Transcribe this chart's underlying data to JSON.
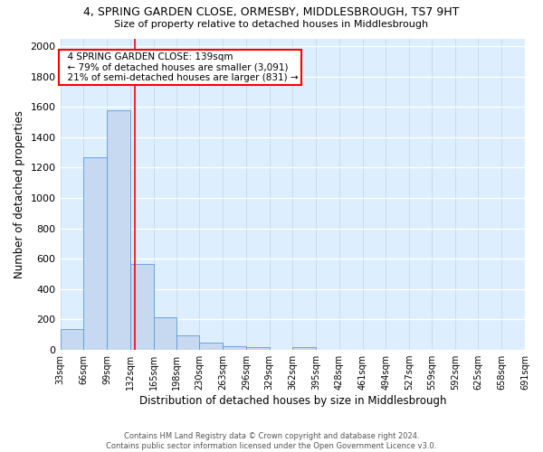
{
  "title1": "4, SPRING GARDEN CLOSE, ORMESBY, MIDDLESBROUGH, TS7 9HT",
  "title2": "Size of property relative to detached houses in Middlesbrough",
  "xlabel": "Distribution of detached houses by size in Middlesbrough",
  "ylabel": "Number of detached properties",
  "bar_color": "#c6d9f0",
  "bar_edge_color": "#5b9bd5",
  "annotation_line_color": "red",
  "property_size": 139,
  "annotation_text": "  4 SPRING GARDEN CLOSE: 139sqm  \n  ← 79% of detached houses are smaller (3,091)\n  21% of semi-detached houses are larger (831) →",
  "bin_edges": [
    33,
    66,
    99,
    132,
    165,
    198,
    230,
    263,
    296,
    329,
    362,
    395,
    428,
    461,
    494,
    527,
    559,
    592,
    625,
    658,
    691
  ],
  "bin_heights": [
    140,
    1270,
    1575,
    565,
    215,
    95,
    48,
    22,
    17,
    3,
    17,
    0,
    0,
    0,
    0,
    0,
    0,
    0,
    0,
    0
  ],
  "ylim": [
    0,
    2050
  ],
  "yticks": [
    0,
    200,
    400,
    600,
    800,
    1000,
    1200,
    1400,
    1600,
    1800,
    2000
  ],
  "footnote": "Contains HM Land Registry data © Crown copyright and database right 2024.\nContains public sector information licensed under the Open Government Licence v3.0.",
  "background_color": "#ddeeff",
  "grid_color": "#c8d8e8"
}
